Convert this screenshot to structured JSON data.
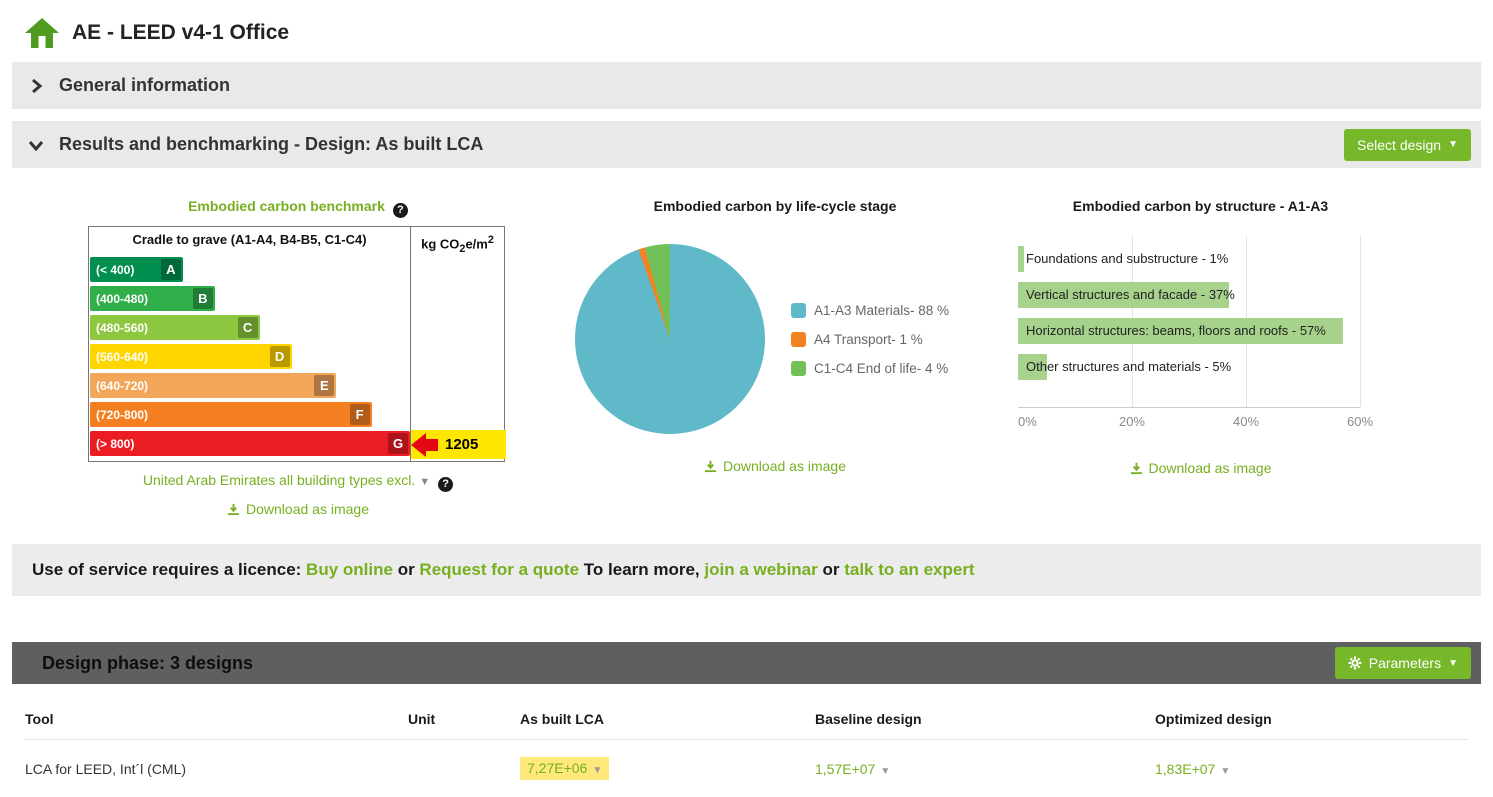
{
  "colors": {
    "accent_green": "#76b020",
    "button_green": "#76b82a",
    "highlight_yellow": "#ffe600",
    "table_highlight_yellow": "#ffe97c",
    "marker_red": "#e30613"
  },
  "header": {
    "title": "AE - LEED v4-1 Office"
  },
  "sections": {
    "general_information": {
      "label": "General information"
    },
    "results": {
      "label": "Results and benchmarking - Design: As built LCA",
      "select_design_button": "Select design"
    },
    "design_phase": {
      "label": "Design phase: 3 designs",
      "parameters_button": "Parameters"
    }
  },
  "benchmark_chart": {
    "title": "Embodied carbon benchmark",
    "table_header": "Cradle to grave (A1-A4, B4-B5, C1-C4)",
    "unit_header": {
      "base": "kg CO",
      "sub": "2",
      "mid": "e/m",
      "sup": "2"
    },
    "bands": [
      {
        "range": "(< 400)",
        "letter": "A",
        "color": "#008f4f",
        "width_pct": 29
      },
      {
        "range": "(400-480)",
        "letter": "B",
        "color": "#2fae4a",
        "width_pct": 39
      },
      {
        "range": "(480-560)",
        "letter": "C",
        "color": "#8dc63f",
        "width_pct": 53
      },
      {
        "range": "(560-640)",
        "letter": "D",
        "color": "#ffd500",
        "width_pct": 63
      },
      {
        "range": "(640-720)",
        "letter": "E",
        "color": "#f2a65a",
        "width_pct": 77
      },
      {
        "range": "(720-800)",
        "letter": "F",
        "color": "#f47f20",
        "width_pct": 88
      },
      {
        "range": "(> 800)",
        "letter": "G",
        "color": "#ec1c24",
        "width_pct": 100
      }
    ],
    "result_value": "1205",
    "region_selector": "United Arab Emirates all building types excl.",
    "download_label": "Download as image"
  },
  "lifecycle_chart": {
    "type": "pie",
    "title": "Embodied carbon by life-cycle stage",
    "slices": [
      {
        "label": "A1-A3 Materials- 88 %",
        "value": 88,
        "color": "#5fb9c9"
      },
      {
        "label": "A4 Transport- 1 %",
        "value": 1,
        "color": "#f58220"
      },
      {
        "label": "C1-C4 End of life- 4 %",
        "value": 4,
        "color": "#71c158"
      }
    ],
    "download_label": "Download as image"
  },
  "structure_chart": {
    "type": "bar",
    "title": "Embodied carbon by structure - A1-A3",
    "bar_color": "#a6d28b",
    "bars": [
      {
        "label": "Foundations and substructure - 1%",
        "value": 1
      },
      {
        "label": "Vertical structures and facade - 37%",
        "value": 37
      },
      {
        "label": "Horizontal structures: beams, floors and roofs - 57%",
        "value": 57
      },
      {
        "label": "Other structures and materials - 5%",
        "value": 5
      }
    ],
    "x_ticks": [
      "0%",
      "20%",
      "40%",
      "60%"
    ],
    "x_max": 60,
    "download_label": "Download as image"
  },
  "licence_bar": {
    "prefix": "Use of service requires a licence: ",
    "buy_online": "Buy online",
    "or_1": " or ",
    "request_quote": "Request for a quote",
    "learn_more": " To learn more, ",
    "join_webinar": "join a webinar",
    "or_2": " or ",
    "talk_expert": "talk to an expert"
  },
  "design_table": {
    "columns": [
      "Tool",
      "Unit",
      "As built LCA",
      "Baseline design",
      "Optimized design"
    ],
    "rows": [
      {
        "tool": "LCA for LEED, Int´l (CML)",
        "unit": "",
        "as_built": "7,27E+06",
        "baseline": "1,57E+07",
        "optimized": "1,83E+07"
      }
    ]
  }
}
